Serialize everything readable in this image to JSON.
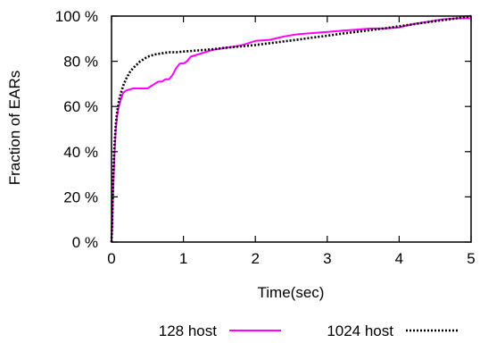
{
  "chart_data": {
    "type": "line",
    "title": "",
    "xlabel": "Time(sec)",
    "ylabel": "Fraction of EARs",
    "xlim": [
      0,
      5
    ],
    "ylim": [
      0,
      100
    ],
    "x_ticks": [
      "0",
      "1",
      "2",
      "3",
      "4",
      "5"
    ],
    "y_ticks": [
      "0 %",
      "20 %",
      "40 %",
      "60 %",
      "80 %",
      "100 %"
    ],
    "grid": false,
    "legend_position": "bottom",
    "series": [
      {
        "name": "128 host",
        "color": "#ff00ff",
        "line_style": "solid",
        "x": [
          0,
          0.01,
          0.02,
          0.04,
          0.06,
          0.08,
          0.1,
          0.13,
          0.16,
          0.2,
          0.25,
          0.3,
          0.35,
          0.4,
          0.45,
          0.5,
          0.55,
          0.6,
          0.65,
          0.7,
          0.75,
          0.8,
          0.85,
          0.9,
          0.95,
          1.0,
          1.05,
          1.1,
          1.2,
          1.3,
          1.4,
          1.5,
          1.6,
          1.7,
          1.8,
          1.9,
          2.0,
          2.2,
          2.4,
          2.6,
          2.8,
          3.0,
          3.2,
          3.4,
          3.6,
          3.8,
          4.0,
          4.2,
          4.4,
          4.6,
          4.8,
          5.0
        ],
        "values": [
          0,
          8,
          20,
          38,
          50,
          56,
          60,
          63,
          66,
          67,
          67.5,
          68,
          68,
          68,
          68,
          68,
          69,
          70,
          71,
          71,
          72,
          72,
          74,
          77,
          79,
          79,
          80,
          82,
          83,
          84,
          85,
          85.5,
          86,
          86.5,
          87,
          88,
          89,
          89.5,
          91,
          92,
          92.5,
          93,
          93.5,
          94,
          94.5,
          94.5,
          95,
          96.5,
          97.5,
          98.5,
          99,
          99
        ]
      },
      {
        "name": "1024 host",
        "color": "#000000",
        "line_style": "dotted",
        "x": [
          0,
          0.01,
          0.02,
          0.04,
          0.06,
          0.08,
          0.1,
          0.13,
          0.16,
          0.2,
          0.25,
          0.3,
          0.35,
          0.4,
          0.45,
          0.5,
          0.6,
          0.7,
          0.8,
          0.9,
          1.0,
          1.2,
          1.4,
          1.6,
          1.8,
          2.0,
          2.2,
          2.4,
          2.6,
          2.8,
          3.0,
          3.2,
          3.4,
          3.6,
          3.8,
          4.0,
          4.2,
          4.4,
          4.6,
          4.8,
          5.0
        ],
        "values": [
          0,
          10,
          25,
          42,
          52,
          58,
          62,
          66,
          69,
          72,
          75,
          77,
          78.5,
          80,
          81,
          82,
          83,
          83.5,
          84,
          84,
          84.3,
          84.8,
          85.3,
          86,
          86.6,
          87.2,
          88,
          88.8,
          89.6,
          90.5,
          91.3,
          92.2,
          93,
          93.8,
          94.6,
          95.5,
          96.4,
          97.3,
          98.2,
          99,
          100
        ]
      }
    ]
  }
}
